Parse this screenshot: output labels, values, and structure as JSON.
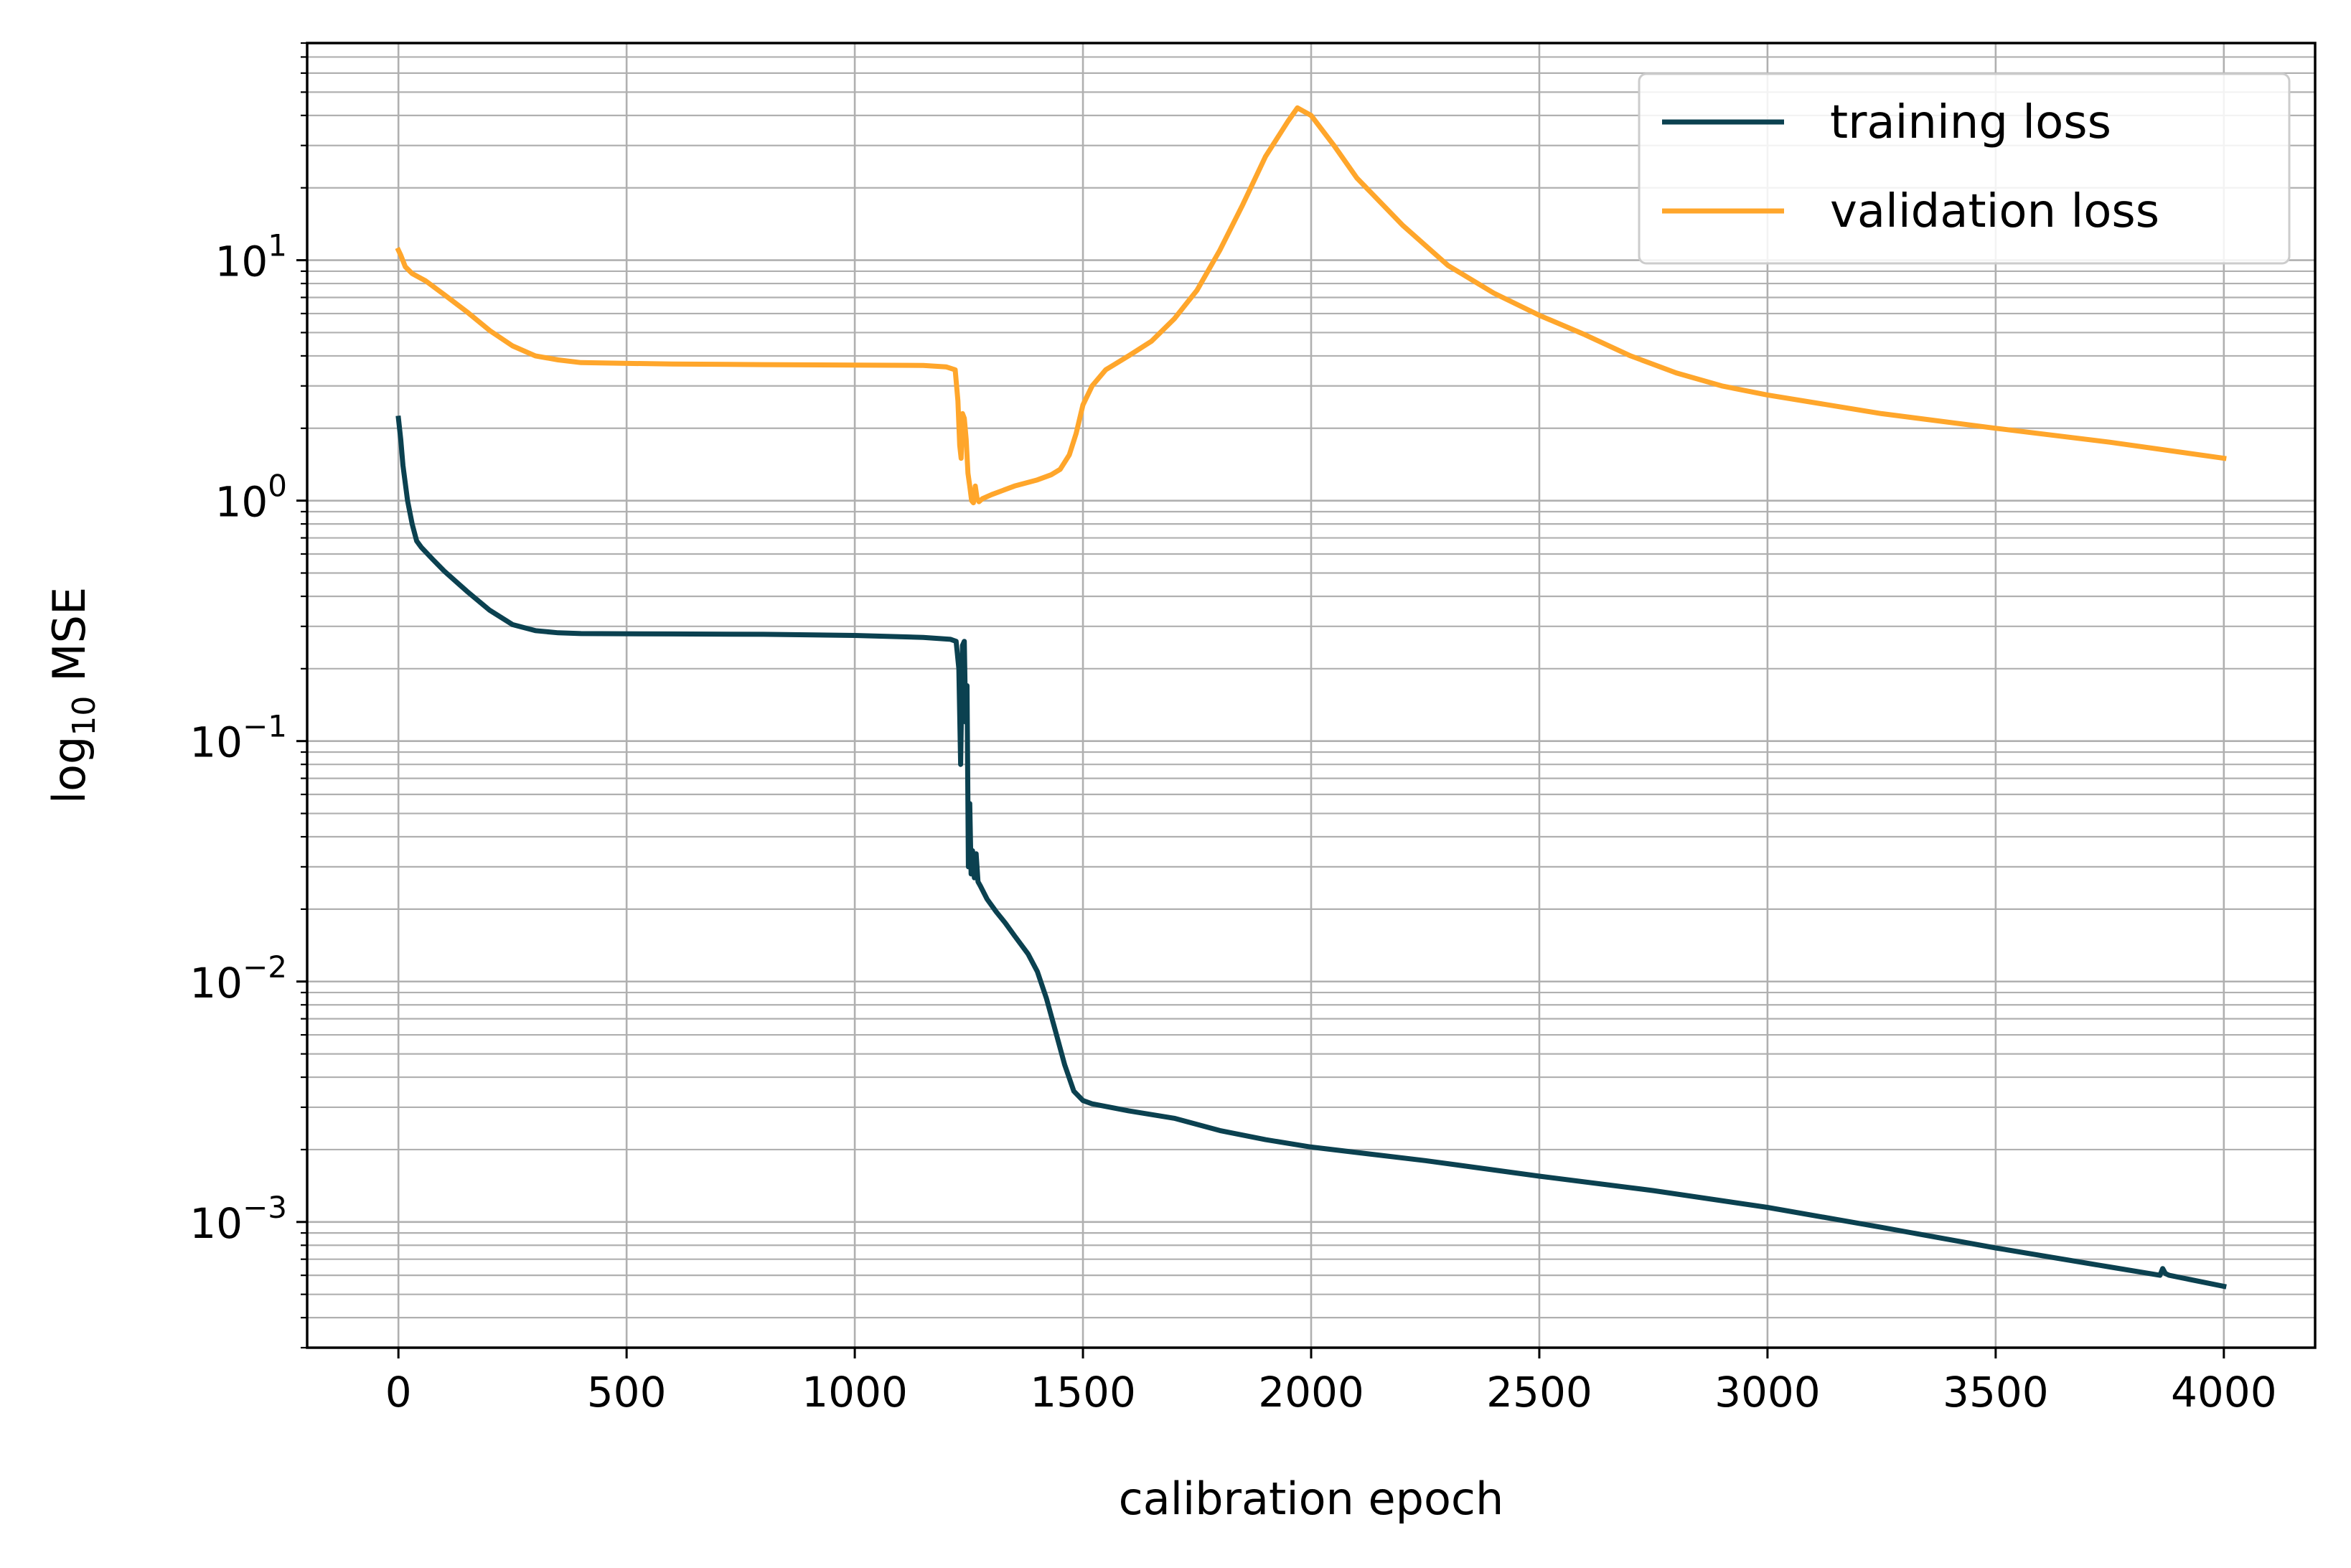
{
  "chart_data": {
    "type": "line",
    "title": "",
    "xlabel": "calibration epoch",
    "ylabel_main": "log",
    "ylabel_sub": "10",
    "ylabel_rest": " MSE",
    "xlim": [
      -200,
      4200
    ],
    "yscale": "log",
    "ylim": [
      0.0003,
      80
    ],
    "grid": true,
    "grid_minor": true,
    "legend_position": "top-right",
    "x_ticks": [
      {
        "value": 0,
        "label": "0"
      },
      {
        "value": 500,
        "label": "500"
      },
      {
        "value": 1000,
        "label": "1000"
      },
      {
        "value": 1500,
        "label": "1500"
      },
      {
        "value": 2000,
        "label": "2000"
      },
      {
        "value": 2500,
        "label": "2500"
      },
      {
        "value": 3000,
        "label": "3000"
      },
      {
        "value": 3500,
        "label": "3500"
      },
      {
        "value": 4000,
        "label": "4000"
      }
    ],
    "y_ticks": [
      {
        "value": 10,
        "base": "10",
        "exp": "1"
      },
      {
        "value": 1,
        "base": "10",
        "exp": "0"
      },
      {
        "value": 0.1,
        "base": "10",
        "exp": "−1"
      },
      {
        "value": 0.01,
        "base": "10",
        "exp": "−2"
      },
      {
        "value": 0.001,
        "base": "10",
        "exp": "−3"
      }
    ],
    "series": [
      {
        "name": "training loss",
        "color": "#0b4150",
        "points": [
          [
            0,
            2.2
          ],
          [
            5,
            1.8
          ],
          [
            10,
            1.4
          ],
          [
            20,
            1.0
          ],
          [
            30,
            0.8
          ],
          [
            40,
            0.68
          ],
          [
            50,
            0.64
          ],
          [
            75,
            0.57
          ],
          [
            100,
            0.51
          ],
          [
            150,
            0.42
          ],
          [
            200,
            0.35
          ],
          [
            250,
            0.305
          ],
          [
            300,
            0.288
          ],
          [
            350,
            0.282
          ],
          [
            400,
            0.28
          ],
          [
            600,
            0.279
          ],
          [
            800,
            0.278
          ],
          [
            1000,
            0.275
          ],
          [
            1150,
            0.27
          ],
          [
            1210,
            0.265
          ],
          [
            1222,
            0.26
          ],
          [
            1228,
            0.2
          ],
          [
            1232,
            0.08
          ],
          [
            1236,
            0.25
          ],
          [
            1240,
            0.26
          ],
          [
            1243,
            0.12
          ],
          [
            1246,
            0.17
          ],
          [
            1249,
            0.03
          ],
          [
            1252,
            0.055
          ],
          [
            1255,
            0.028
          ],
          [
            1258,
            0.035
          ],
          [
            1262,
            0.027
          ],
          [
            1266,
            0.034
          ],
          [
            1270,
            0.026
          ],
          [
            1275,
            0.025
          ],
          [
            1290,
            0.022
          ],
          [
            1310,
            0.0195
          ],
          [
            1330,
            0.0175
          ],
          [
            1350,
            0.0155
          ],
          [
            1380,
            0.013
          ],
          [
            1400,
            0.011
          ],
          [
            1420,
            0.0085
          ],
          [
            1440,
            0.0062
          ],
          [
            1460,
            0.0045
          ],
          [
            1480,
            0.0035
          ],
          [
            1500,
            0.0032
          ],
          [
            1520,
            0.0031
          ],
          [
            1600,
            0.0029
          ],
          [
            1700,
            0.0027
          ],
          [
            1800,
            0.0024
          ],
          [
            1900,
            0.0022
          ],
          [
            2000,
            0.00205
          ],
          [
            2250,
            0.0018
          ],
          [
            2500,
            0.00155
          ],
          [
            2750,
            0.00135
          ],
          [
            3000,
            0.00115
          ],
          [
            3250,
            0.00095
          ],
          [
            3500,
            0.00078
          ],
          [
            3750,
            0.00065
          ],
          [
            3860,
            0.0006
          ],
          [
            3866,
            0.00064
          ],
          [
            3872,
            0.00061
          ],
          [
            3880,
            0.0006
          ],
          [
            4000,
            0.00054
          ]
        ]
      },
      {
        "name": "validation loss",
        "color": "#ffa62b",
        "points": [
          [
            0,
            11
          ],
          [
            5,
            10.5
          ],
          [
            15,
            9.4
          ],
          [
            30,
            8.8
          ],
          [
            60,
            8.2
          ],
          [
            100,
            7.2
          ],
          [
            150,
            6.1
          ],
          [
            200,
            5.1
          ],
          [
            250,
            4.4
          ],
          [
            300,
            4.0
          ],
          [
            350,
            3.85
          ],
          [
            400,
            3.75
          ],
          [
            600,
            3.7
          ],
          [
            800,
            3.68
          ],
          [
            1000,
            3.66
          ],
          [
            1150,
            3.65
          ],
          [
            1200,
            3.6
          ],
          [
            1220,
            3.5
          ],
          [
            1226,
            2.6
          ],
          [
            1230,
            1.7
          ],
          [
            1233,
            1.5
          ],
          [
            1236,
            2.3
          ],
          [
            1240,
            2.2
          ],
          [
            1244,
            1.8
          ],
          [
            1248,
            1.3
          ],
          [
            1252,
            1.15
          ],
          [
            1256,
            1.0
          ],
          [
            1260,
            0.98
          ],
          [
            1264,
            1.15
          ],
          [
            1268,
            1.02
          ],
          [
            1272,
            0.99
          ],
          [
            1280,
            1.02
          ],
          [
            1300,
            1.06
          ],
          [
            1350,
            1.15
          ],
          [
            1400,
            1.22
          ],
          [
            1430,
            1.28
          ],
          [
            1450,
            1.35
          ],
          [
            1470,
            1.55
          ],
          [
            1485,
            1.9
          ],
          [
            1500,
            2.5
          ],
          [
            1520,
            3.0
          ],
          [
            1550,
            3.5
          ],
          [
            1600,
            4.0
          ],
          [
            1650,
            4.6
          ],
          [
            1700,
            5.7
          ],
          [
            1750,
            7.5
          ],
          [
            1800,
            11
          ],
          [
            1850,
            17
          ],
          [
            1900,
            27
          ],
          [
            1950,
            38
          ],
          [
            1970,
            43
          ],
          [
            2000,
            40
          ],
          [
            2050,
            30
          ],
          [
            2100,
            22
          ],
          [
            2200,
            14
          ],
          [
            2300,
            9.5
          ],
          [
            2400,
            7.3
          ],
          [
            2500,
            5.9
          ],
          [
            2600,
            4.9
          ],
          [
            2700,
            4.0
          ],
          [
            2800,
            3.4
          ],
          [
            2900,
            3.0
          ],
          [
            3000,
            2.75
          ],
          [
            3250,
            2.3
          ],
          [
            3500,
            2.0
          ],
          [
            3750,
            1.75
          ],
          [
            4000,
            1.5
          ]
        ]
      }
    ]
  }
}
